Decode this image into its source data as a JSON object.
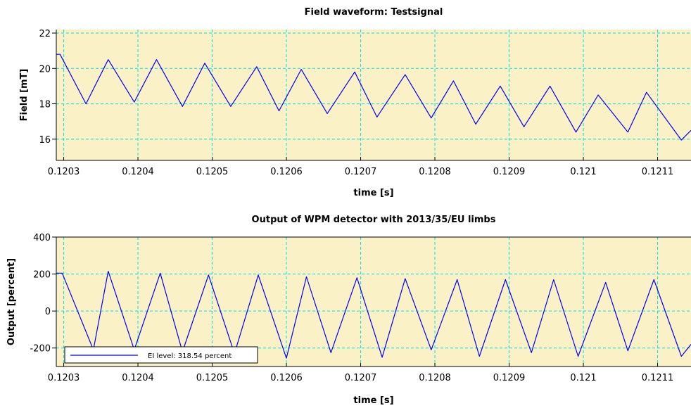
{
  "colors": {
    "plot_background": "#fbf1c7",
    "grid": "#00e0e8",
    "series": "#0000ee",
    "axis": "#000000"
  },
  "chart_data": [
    {
      "type": "line",
      "title": "Field waveform: Testsignal",
      "xlabel": "time [s]",
      "ylabel": "Field [mT]",
      "xlim": [
        0.12029,
        0.121145
      ],
      "ylim": [
        14.8,
        22.2
      ],
      "grid": true,
      "xticks": [
        0.1203,
        0.1204,
        0.1205,
        0.1206,
        0.1207,
        0.1208,
        0.1209,
        0.121,
        0.1211
      ],
      "xtick_labels": [
        "0.1203",
        "0.1204",
        "0.1205",
        "0.1206",
        "0.1207",
        "0.1208",
        "0.1209",
        "0.121",
        "0.1211"
      ],
      "yticks": [
        16,
        18,
        20,
        22
      ],
      "ytick_labels": [
        "16",
        "18",
        "20",
        "22"
      ],
      "series": [
        {
          "x": [
            0.12029,
            0.120295,
            0.12033,
            0.12036,
            0.120395,
            0.120425,
            0.12046,
            0.12049,
            0.120525,
            0.12056,
            0.12059,
            0.12062,
            0.120655,
            0.120692,
            0.120722,
            0.12076,
            0.120795,
            0.120825,
            0.120855,
            0.120888,
            0.12092,
            0.120955,
            0.12099,
            0.12102,
            0.12106,
            0.121085,
            0.121132,
            0.121145
          ],
          "y": [
            20.8,
            20.8,
            18.0,
            20.5,
            18.1,
            20.5,
            17.85,
            20.3,
            17.85,
            20.1,
            17.6,
            19.95,
            17.45,
            19.8,
            17.25,
            19.65,
            17.2,
            19.3,
            16.85,
            19.0,
            16.7,
            19.0,
            16.4,
            18.5,
            16.4,
            18.65,
            15.95,
            16.5
          ]
        }
      ]
    },
    {
      "type": "line",
      "title": "Output of WPM detector with 2013/35/EU limbs",
      "xlabel": "time [s]",
      "ylabel": "Output [percent]",
      "xlim": [
        0.12029,
        0.121145
      ],
      "ylim": [
        -300,
        400
      ],
      "grid": true,
      "legend_placement": "bottom-left",
      "xticks": [
        0.1203,
        0.1204,
        0.1205,
        0.1206,
        0.1207,
        0.1208,
        0.1209,
        0.121,
        0.1211
      ],
      "xtick_labels": [
        "0.1203",
        "0.1204",
        "0.1205",
        "0.1206",
        "0.1207",
        "0.1208",
        "0.1209",
        "0.121",
        "0.1211"
      ],
      "yticks": [
        -200,
        0,
        200,
        400
      ],
      "ytick_labels": [
        "-200",
        "0",
        "200",
        "400"
      ],
      "series": [
        {
          "name": "EI level: 318.54 percent",
          "x": [
            0.12029,
            0.120298,
            0.12034,
            0.12036,
            0.120395,
            0.12043,
            0.12046,
            0.120495,
            0.12053,
            0.120562,
            0.1206,
            0.120627,
            0.12066,
            0.120695,
            0.120729,
            0.12076,
            0.120795,
            0.12083,
            0.12086,
            0.120895,
            0.12093,
            0.12096,
            0.120993,
            0.12103,
            0.12106,
            0.121095,
            0.121132,
            0.121145
          ],
          "y": [
            205,
            205,
            -210,
            215,
            -210,
            205,
            -220,
            195,
            -230,
            195,
            -255,
            185,
            -225,
            180,
            -250,
            175,
            -210,
            170,
            -245,
            170,
            -225,
            170,
            -245,
            155,
            -215,
            170,
            -245,
            -180
          ]
        }
      ]
    }
  ]
}
